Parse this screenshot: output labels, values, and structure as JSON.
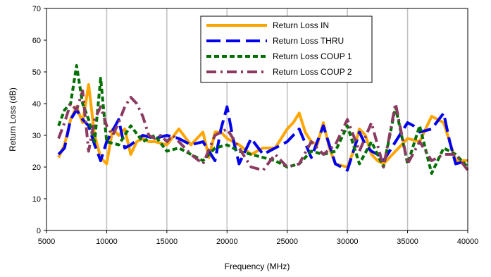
{
  "chart_data": {
    "type": "line",
    "title": "",
    "xlabel": "Frequency (MHz)",
    "ylabel": "Return Loss (dB)",
    "xlim": [
      5000,
      40000
    ],
    "ylim": [
      0,
      70
    ],
    "xticks": [
      5000,
      10000,
      15000,
      20000,
      25000,
      30000,
      35000,
      40000
    ],
    "xtick_labels": [
      "5000",
      "10000",
      "15000",
      "20000",
      "25000",
      "30000",
      "35000",
      "40000"
    ],
    "yticks": [
      0,
      10,
      20,
      30,
      40,
      50,
      60,
      70
    ],
    "ytick_labels": [
      "0",
      "10",
      "20",
      "30",
      "40",
      "50",
      "60",
      "70"
    ],
    "grid": "vertical",
    "legend_position": "top-center",
    "series": [
      {
        "name": "Return Loss IN",
        "color": "#FFA500",
        "style": "solid",
        "x": [
          6000,
          6500,
          7000,
          7500,
          8000,
          8500,
          9000,
          9500,
          10000,
          10500,
          11000,
          11500,
          12000,
          12500,
          13000,
          13500,
          14000,
          15000,
          16000,
          17000,
          18000,
          18500,
          19000,
          19500,
          20000,
          21000,
          22000,
          23000,
          24000,
          25000,
          25500,
          26000,
          26500,
          27000,
          27500,
          28000,
          28500,
          29000,
          30000,
          30500,
          31000,
          31500,
          32000,
          32500,
          33000,
          34000,
          35000,
          36000,
          37000,
          38000,
          39000,
          40000
        ],
        "y": [
          23,
          27,
          35,
          39,
          34,
          46,
          30,
          23,
          21,
          32,
          30,
          32,
          24,
          28,
          29,
          28,
          28,
          27,
          32,
          27,
          31,
          23,
          31,
          31,
          29,
          27,
          24,
          26,
          26,
          32,
          34,
          37,
          31,
          28,
          27,
          34,
          26,
          21,
          20,
          25,
          32,
          30,
          24,
          22,
          21,
          25,
          29,
          28,
          36,
          34,
          22,
          22
        ]
      },
      {
        "name": "Return Loss THRU",
        "color": "#0000EE",
        "style": "long-dash",
        "x": [
          6000,
          6500,
          7000,
          7500,
          8000,
          8500,
          9000,
          9500,
          10000,
          11000,
          11500,
          12000,
          13000,
          14000,
          15000,
          16000,
          17000,
          18000,
          19000,
          19500,
          20000,
          20500,
          21000,
          22000,
          23000,
          24000,
          25000,
          26000,
          27000,
          27500,
          28000,
          28500,
          29000,
          30000,
          30500,
          31000,
          31500,
          32000,
          32500,
          33000,
          34000,
          35000,
          35500,
          36000,
          37000,
          38000,
          38500,
          39000,
          40000
        ],
        "y": [
          24,
          26,
          35,
          38,
          35,
          33,
          27,
          22,
          28,
          35,
          26,
          27,
          30,
          29,
          30,
          29,
          27,
          28,
          22,
          32,
          39,
          29,
          21,
          29,
          24,
          26,
          28,
          32,
          23,
          28,
          33,
          27,
          21,
          19,
          25,
          31,
          27,
          25,
          24,
          22,
          28,
          34,
          33,
          31,
          32,
          37,
          28,
          21,
          22
        ]
      },
      {
        "name": "Return Loss COUP 1",
        "color": "#007000",
        "style": "short-dash",
        "x": [
          6000,
          6500,
          7000,
          7500,
          8000,
          8500,
          9000,
          9500,
          10000,
          11000,
          12000,
          13000,
          14000,
          15000,
          16000,
          17000,
          18000,
          19000,
          20000,
          21000,
          22000,
          23000,
          24000,
          25000,
          26000,
          27000,
          28000,
          29000,
          30000,
          31000,
          32000,
          33000,
          34000,
          35000,
          36000,
          37000,
          38000,
          39000,
          40000
        ],
        "y": [
          33,
          38,
          40,
          52,
          40,
          35,
          28,
          48,
          28,
          27,
          33,
          28,
          30,
          25,
          26,
          24,
          22,
          26,
          27,
          25,
          24,
          23,
          22,
          20,
          21,
          25,
          24,
          25,
          33,
          21,
          28,
          20,
          39,
          21,
          33,
          18,
          26,
          24,
          20
        ]
      },
      {
        "name": "Return Loss COUP 2",
        "color": "#8B3A62",
        "style": "dash-dot",
        "x": [
          6000,
          6500,
          7000,
          7500,
          8000,
          8500,
          9000,
          9500,
          10000,
          10500,
          11000,
          11500,
          12000,
          12500,
          13000,
          13500,
          14000,
          14500,
          15000,
          15500,
          16000,
          17000,
          18000,
          19000,
          20000,
          21000,
          22000,
          23000,
          24000,
          25000,
          26000,
          27000,
          28000,
          29000,
          30000,
          30500,
          31000,
          32000,
          33000,
          34000,
          35000,
          36000,
          37000,
          38000,
          39000,
          40000
        ],
        "y": [
          29,
          34,
          40,
          38,
          44,
          25,
          35,
          39,
          33,
          30,
          34,
          39,
          42,
          40,
          36,
          30,
          29,
          30,
          28,
          30,
          28,
          24,
          21,
          30,
          32,
          26,
          20,
          19,
          24,
          20,
          21,
          28,
          24,
          27,
          35,
          30,
          25,
          34,
          20,
          40,
          21,
          28,
          22,
          24,
          24,
          19
        ]
      }
    ]
  }
}
